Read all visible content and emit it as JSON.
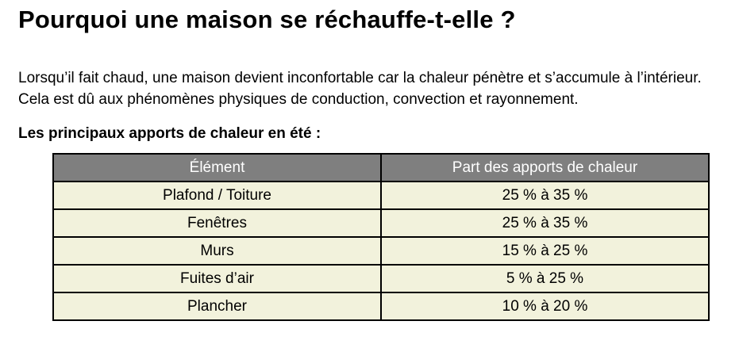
{
  "title": "Pourquoi une maison se réchauffe-t-elle ?",
  "intro": "Lorsqu’il fait chaud, une maison devient inconfortable car la chaleur pénètre et s’accumule à l’intérieur. Cela est dû aux phénomènes physiques de conduction, convection et rayonnement.",
  "table_heading": "Les principaux apports de chaleur en été :",
  "table": {
    "headers": [
      "Élément",
      "Part des apports de chaleur"
    ],
    "rows": [
      {
        "element": "Plafond / Toiture",
        "share": "25 % à 35 %"
      },
      {
        "element": "Fenêtres",
        "share": "25 % à 35 %"
      },
      {
        "element": "Murs",
        "share": "15 % à 25 %"
      },
      {
        "element": "Fuites d’air",
        "share": "5 % à 25 %"
      },
      {
        "element": "Plancher",
        "share": "10 % à 20 %"
      }
    ]
  },
  "colors": {
    "header_bg": "#7F7F7F",
    "header_text": "#FFFFFF",
    "row_bg": "#F2F2DC",
    "border": "#000000",
    "text": "#000000",
    "page_bg": "#FFFFFF"
  }
}
